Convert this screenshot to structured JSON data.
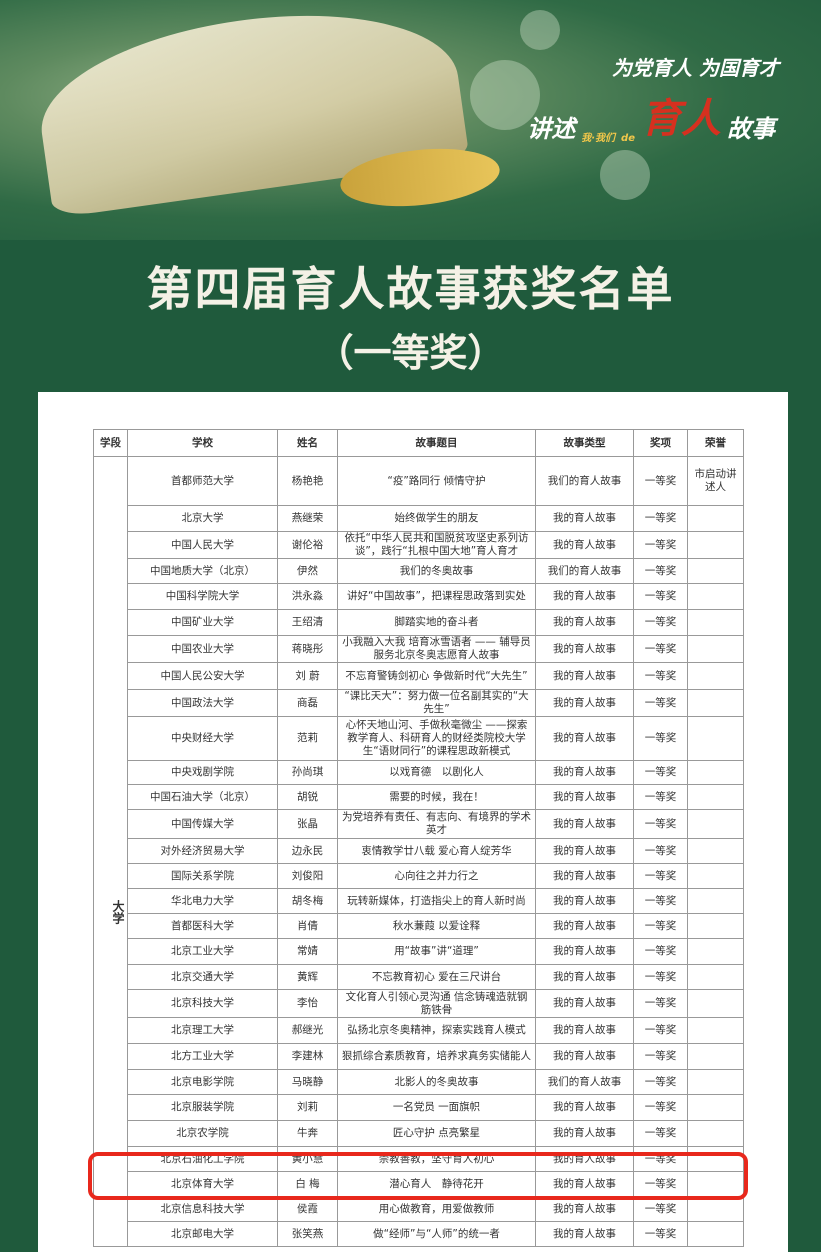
{
  "banner": {
    "slogan1": "为党育人  为国育才",
    "slogan2_a": "讲述",
    "slogan2_small": "我·我们",
    "slogan2_de": "de",
    "slogan2_big": "育人",
    "slogan2_b": "故事"
  },
  "title": "第四届育人故事获奖名单",
  "subtitle": "（一等奖）",
  "table": {
    "headers": [
      "学段",
      "学校",
      "姓名",
      "故事题目",
      "故事类型",
      "奖项",
      "荣誉"
    ],
    "stage": "大学",
    "highlight_color": "#e8281c",
    "rows": [
      [
        "首都师范大学",
        "杨艳艳",
        "“疫”路同行 倾情守护",
        "我们的育人故事",
        "一等奖",
        "市启动讲述人"
      ],
      [
        "北京大学",
        "燕继荣",
        "始终做学生的朋友",
        "我的育人故事",
        "一等奖",
        ""
      ],
      [
        "中国人民大学",
        "谢伦裕",
        "依托“中华人民共和国脱贫攻坚史系列访谈”，践行“扎根中国大地”育人育才",
        "我的育人故事",
        "一等奖",
        ""
      ],
      [
        "中国地质大学（北京）",
        "伊然",
        "我们的冬奥故事",
        "我们的育人故事",
        "一等奖",
        ""
      ],
      [
        "中国科学院大学",
        "洪永淼",
        "讲好“中国故事”，把课程思政落到实处",
        "我的育人故事",
        "一等奖",
        ""
      ],
      [
        "中国矿业大学",
        "王绍清",
        "脚踏实地的奋斗者",
        "我的育人故事",
        "一等奖",
        ""
      ],
      [
        "中国农业大学",
        "蒋晓彤",
        "小我融入大我 培育冰雪语者 —— 辅导员服务北京冬奥志愿育人故事",
        "我的育人故事",
        "一等奖",
        ""
      ],
      [
        "中国人民公安大学",
        "刘 蔚",
        "不忘育警铸剑初心 争做新时代“大先生”",
        "我的育人故事",
        "一等奖",
        ""
      ],
      [
        "中国政法大学",
        "商磊",
        "“课比天大”：努力做一位名副其实的“大先生”",
        "我的育人故事",
        "一等奖",
        ""
      ],
      [
        "中央财经大学",
        "范莉",
        "心怀天地山河、手做秋毫微尘 ——探索教学育人、科研育人的财经类院校大学生“语财同行”的课程思政新模式",
        "我的育人故事",
        "一等奖",
        ""
      ],
      [
        "中央戏剧学院",
        "孙尚琪",
        "以戏育德　以剧化人",
        "我的育人故事",
        "一等奖",
        ""
      ],
      [
        "中国石油大学（北京）",
        "胡锐",
        "需要的时候，我在！",
        "我的育人故事",
        "一等奖",
        ""
      ],
      [
        "中国传媒大学",
        "张晶",
        "为党培养有责任、有志向、有境界的学术英才",
        "我的育人故事",
        "一等奖",
        ""
      ],
      [
        "对外经济贸易大学",
        "边永民",
        "衷情教学廿八载 爱心育人绽芳华",
        "我的育人故事",
        "一等奖",
        ""
      ],
      [
        "国际关系学院",
        "刘俊阳",
        "心向往之并力行之",
        "我的育人故事",
        "一等奖",
        ""
      ],
      [
        "华北电力大学",
        "胡冬梅",
        "玩转新媒体，打造指尖上的育人新时尚",
        "我的育人故事",
        "一等奖",
        ""
      ],
      [
        "首都医科大学",
        "肖倩",
        "秋水蒹葭 以爱诠释",
        "我的育人故事",
        "一等奖",
        ""
      ],
      [
        "北京工业大学",
        "常婧",
        "用“故事”讲“道理”",
        "我的育人故事",
        "一等奖",
        ""
      ],
      [
        "北京交通大学",
        "黄辉",
        "不忘教育初心 爱在三尺讲台",
        "我的育人故事",
        "一等奖",
        ""
      ],
      [
        "北京科技大学",
        "李怡",
        "文化育人引领心灵沟通 信念铸魂造就钢筋铁骨",
        "我的育人故事",
        "一等奖",
        ""
      ],
      [
        "北京理工大学",
        "郝继光",
        "弘扬北京冬奥精神，探索实践育人模式",
        "我的育人故事",
        "一等奖",
        ""
      ],
      [
        "北方工业大学",
        "李建林",
        "狠抓综合素质教育，培养求真务实储能人",
        "我的育人故事",
        "一等奖",
        ""
      ],
      [
        "北京电影学院",
        "马晓静",
        "北影人的冬奥故事",
        "我们的育人故事",
        "一等奖",
        ""
      ],
      [
        "北京服装学院",
        "刘莉",
        "一名党员 一面旗帜",
        "我的育人故事",
        "一等奖",
        ""
      ],
      [
        "北京农学院",
        "牛奔",
        "匠心守护 点亮繁星",
        "我的育人故事",
        "一等奖",
        ""
      ],
      [
        "北京石油化工学院",
        "黄小慧",
        "崇教善教，坚守育人初心",
        "我的育人故事",
        "一等奖",
        ""
      ],
      [
        "北京体育大学",
        "白 梅",
        "潜心育人　静待花开",
        "我的育人故事",
        "一等奖",
        ""
      ],
      [
        "北京信息科技大学",
        "侯霞",
        "用心做教育，用爱做教师",
        "我的育人故事",
        "一等奖",
        ""
      ],
      [
        "北京邮电大学",
        "张笑燕",
        "做“经师”与“人师”的统一者",
        "我的育人故事",
        "一等奖",
        ""
      ]
    ]
  }
}
